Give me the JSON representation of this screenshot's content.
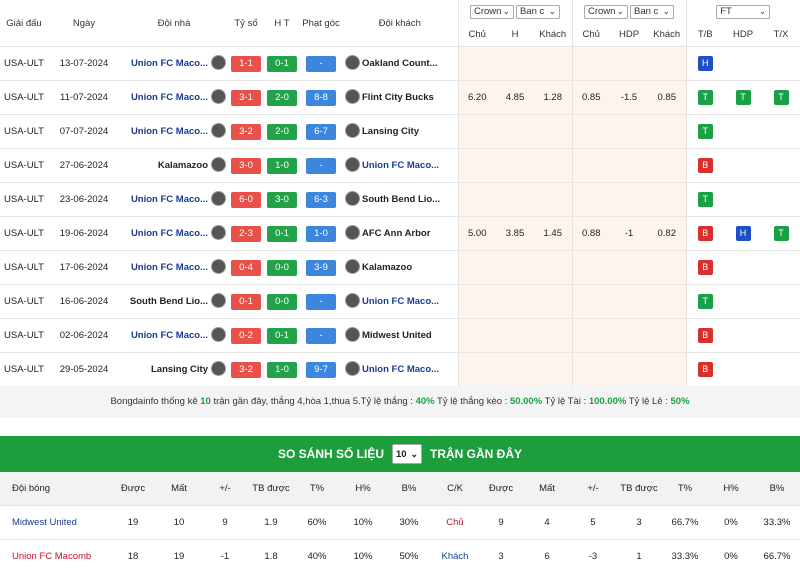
{
  "header": {
    "columns": [
      "Giải đấu",
      "Ngày",
      "Đội nhà",
      "Tỷ số",
      "H T",
      "Phạt góc",
      "Đội khách"
    ],
    "selects": [
      "Crown",
      "Ban c",
      "Crown",
      "Ban c",
      "FT"
    ],
    "subcolumns": [
      "Chủ",
      "H",
      "Khách",
      "Chủ",
      "HDP",
      "Khách",
      "T/B",
      "HDP",
      "T/X"
    ]
  },
  "matches": [
    {
      "league": "USA-ULT",
      "date": "13-07-2024",
      "home": "Union FC Maco...",
      "score": "1-1",
      "ht": "0-1",
      "corners": "-",
      "away": "Oakland Count...",
      "highlight": "home",
      "results": [
        {
          "label": "H",
          "color": "#1f4fc4"
        },
        null,
        null
      ]
    },
    {
      "league": "USA-ULT",
      "date": "11-07-2024",
      "home": "Union FC Maco...",
      "score": "3-1",
      "ht": "2-0",
      "corners": "8-8",
      "away": "Flint City Bucks",
      "highlight": "home",
      "odds": [
        "6.20",
        "4.85",
        "1.28",
        "0.85",
        "-1.5",
        "0.85"
      ],
      "results": [
        {
          "label": "T",
          "color": "#1aa146"
        },
        {
          "label": "T",
          "color": "#1aa146"
        },
        {
          "label": "T",
          "color": "#1aa146"
        }
      ]
    },
    {
      "league": "USA-ULT",
      "date": "07-07-2024",
      "home": "Union FC Maco...",
      "score": "3-2",
      "ht": "2-0",
      "corners": "6-7",
      "away": "Lansing City",
      "highlight": "home",
      "results": [
        {
          "label": "T",
          "color": "#1aa146"
        },
        null,
        null
      ]
    },
    {
      "league": "USA-ULT",
      "date": "27-06-2024",
      "home": "Kalamazoo",
      "score": "3-0",
      "ht": "1-0",
      "corners": "-",
      "away": "Union FC Maco...",
      "highlight": "away",
      "results": [
        {
          "label": "B",
          "color": "#d8302c"
        },
        null,
        null
      ]
    },
    {
      "league": "USA-ULT",
      "date": "23-06-2024",
      "home": "Union FC Maco...",
      "score": "6-0",
      "ht": "3-0",
      "corners": "6-3",
      "away": "South Bend Lio...",
      "highlight": "home",
      "results": [
        {
          "label": "T",
          "color": "#1aa146"
        },
        null,
        null
      ]
    },
    {
      "league": "USA-ULT",
      "date": "19-06-2024",
      "home": "Union FC Maco...",
      "score": "2-3",
      "ht": "0-1",
      "corners": "1-0",
      "away": "AFC Ann Arbor",
      "highlight": "home",
      "odds": [
        "5.00",
        "3.85",
        "1.45",
        "0.88",
        "-1",
        "0.82"
      ],
      "results": [
        {
          "label": "B",
          "color": "#d8302c"
        },
        {
          "label": "H",
          "color": "#1f4fc4"
        },
        {
          "label": "T",
          "color": "#1aa146"
        }
      ]
    },
    {
      "league": "USA-ULT",
      "date": "17-06-2024",
      "home": "Union FC Maco...",
      "score": "0-4",
      "ht": "0-0",
      "corners": "3-9",
      "away": "Kalamazoo",
      "highlight": "home",
      "results": [
        {
          "label": "B",
          "color": "#d8302c"
        },
        null,
        null
      ]
    },
    {
      "league": "USA-ULT",
      "date": "16-06-2024",
      "home": "South Bend Lio...",
      "score": "0-1",
      "ht": "0-0",
      "corners": "-",
      "away": "Union FC Maco...",
      "highlight": "away",
      "results": [
        {
          "label": "T",
          "color": "#1aa146"
        },
        null,
        null
      ]
    },
    {
      "league": "USA-ULT",
      "date": "02-06-2024",
      "home": "Union FC Maco...",
      "score": "0-2",
      "ht": "0-1",
      "corners": "-",
      "away": "Midwest United",
      "highlight": "home",
      "results": [
        {
          "label": "B",
          "color": "#d8302c"
        },
        null,
        null
      ]
    },
    {
      "league": "USA-ULT",
      "date": "29-05-2024",
      "home": "Lansing City",
      "score": "3-2",
      "ht": "1-0",
      "corners": "9-7",
      "away": "Union FC Maco...",
      "highlight": "away",
      "results": [
        {
          "label": "B",
          "color": "#d8302c"
        },
        null,
        null
      ]
    }
  ],
  "summary": [
    "Bongdainfo thống kê ",
    "10",
    " trận gần đây, thắng 4,hòa 1,thua 5.Tỷ lệ thắng : ",
    "40%",
    " Tỷ lệ thắng kèo : ",
    "50.00%",
    " Tỷ lệ Tài : ",
    "100.00%",
    " Tỷ lệ Lẻ : ",
    "50%"
  ],
  "compare": {
    "title": "SO SÁNH SỐ LIỆU",
    "select": "10",
    "title2": "TRẬN GẦN ĐÂY",
    "columns": [
      "Đội bóng",
      "Được",
      "Mất",
      "+/-",
      "TB được",
      "T%",
      "H%",
      "B%",
      "C/K",
      "Được",
      "Mất",
      "+/-",
      "TB được",
      "T%",
      "H%",
      "B%"
    ],
    "rows": [
      [
        "Midwest United",
        "19",
        "10",
        "9",
        "1.9",
        "60%",
        "10%",
        "30%",
        "Chủ",
        "9",
        "4",
        "5",
        "3",
        "66.7%",
        "0%",
        "33.3%"
      ],
      [
        "Union FC Macomb",
        "18",
        "19",
        "-1",
        "1.8",
        "40%",
        "10%",
        "50%",
        "Khách",
        "3",
        "6",
        "-3",
        "1",
        "33.3%",
        "0%",
        "66.7%"
      ]
    ],
    "team_colors": [
      "#1a3d8f",
      "#c8102e"
    ],
    "side_colors": [
      "#c8102e",
      "#1a3d8f"
    ]
  }
}
